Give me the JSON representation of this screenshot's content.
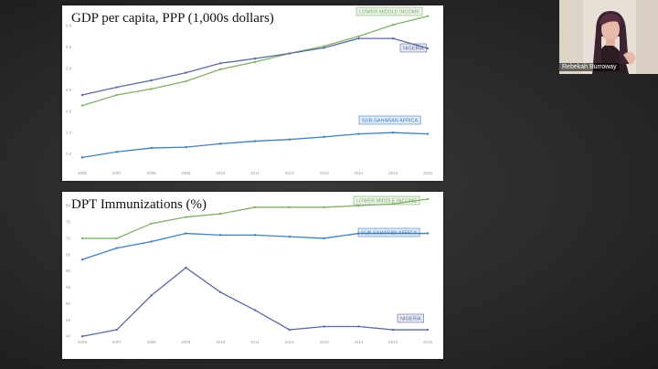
{
  "participant": {
    "name": "Rebekah Burroway"
  },
  "chart_data": [
    {
      "type": "line",
      "title": "GDP per capita, PPP (1,000s dollars)",
      "x": [
        "2006",
        "2007",
        "2008",
        "2009",
        "2010",
        "2011",
        "2012",
        "2013",
        "2014",
        "2015",
        "2016"
      ],
      "y_ticks": [
        "3.0",
        "3.5",
        "4.0",
        "4.5",
        "5.0",
        "5.5",
        "6.0"
      ],
      "ylim": [
        2.8,
        6.3
      ],
      "grid": false,
      "series": [
        {
          "name": "LOWER MIDDLE INCOME",
          "color": "#7fb069",
          "values": [
            4.13,
            4.38,
            4.52,
            4.7,
            4.98,
            5.15,
            5.35,
            5.52,
            5.75,
            6.02,
            6.22
          ]
        },
        {
          "name": "NIGERIA",
          "color": "#5a6aa0",
          "values": [
            4.38,
            4.56,
            4.72,
            4.9,
            5.12,
            5.23,
            5.35,
            5.48,
            5.7,
            5.7,
            5.47
          ]
        },
        {
          "name": "SUB-SAHARAN AFRICA",
          "color": "#3f7fbf",
          "values": [
            2.92,
            3.05,
            3.14,
            3.16,
            3.24,
            3.3,
            3.34,
            3.4,
            3.47,
            3.5,
            3.47
          ]
        }
      ]
    },
    {
      "type": "line",
      "title": "DPT Immunizations (%)",
      "x": [
        "2006",
        "2007",
        "2008",
        "2009",
        "2010",
        "2011",
        "2012",
        "2013",
        "2014",
        "2015",
        "2016"
      ],
      "y_ticks": [
        "40",
        "45",
        "50",
        "55",
        "60",
        "65",
        "70",
        "75",
        "80"
      ],
      "ylim": [
        39.5,
        82
      ],
      "grid": false,
      "series": [
        {
          "name": "LOWER MIDDLE INCOME",
          "color": "#7fb069",
          "values": [
            70,
            70,
            74.5,
            76.5,
            77.5,
            79.5,
            79.5,
            79.5,
            80,
            80.5,
            82
          ]
        },
        {
          "name": "SUB-SAHARAN AFRICA",
          "color": "#3f7fbf",
          "values": [
            63.5,
            67,
            69,
            71.5,
            71,
            71,
            70.5,
            70,
            71.5,
            71.5,
            71.5
          ]
        },
        {
          "name": "NIGERIA",
          "color": "#5a6aa0",
          "values": [
            40,
            42,
            52.5,
            61,
            53.5,
            48,
            42,
            43,
            43,
            42,
            42
          ]
        }
      ]
    }
  ]
}
